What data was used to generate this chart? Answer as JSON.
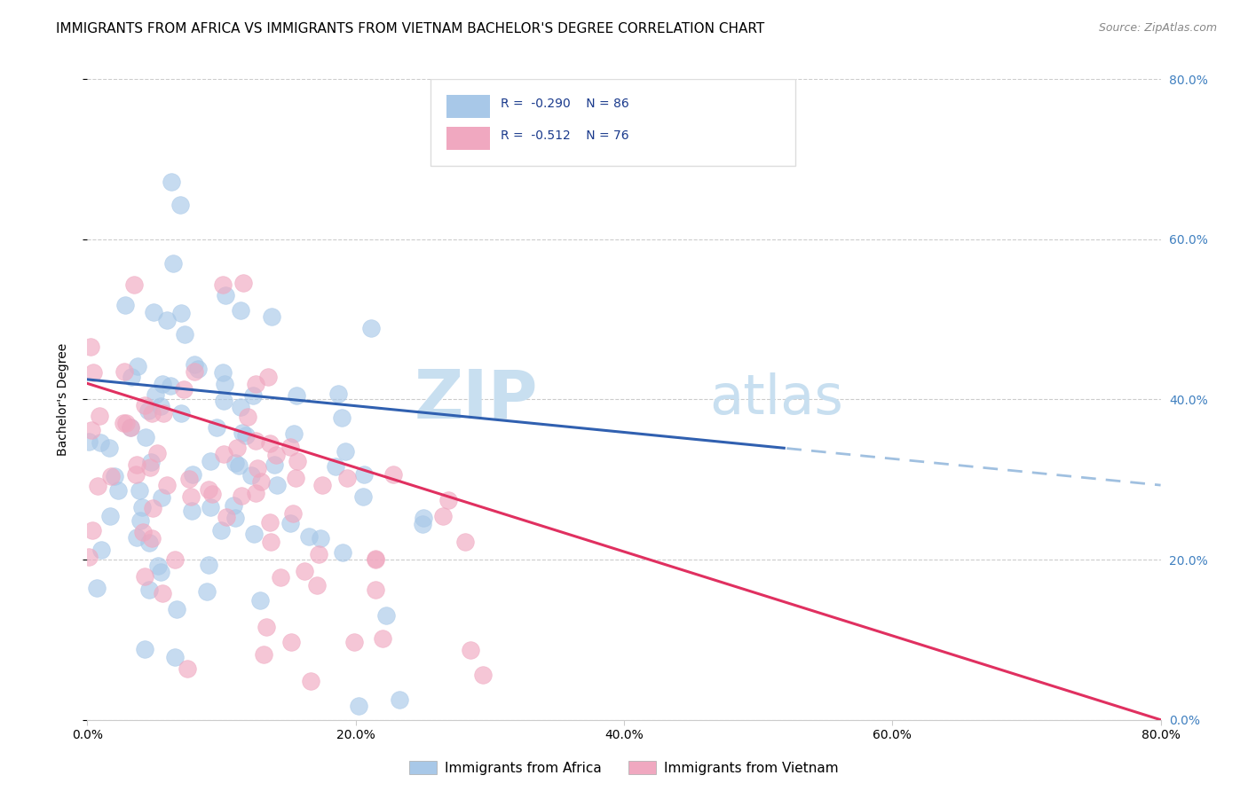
{
  "title": "IMMIGRANTS FROM AFRICA VS IMMIGRANTS FROM VIETNAM BACHELOR'S DEGREE CORRELATION CHART",
  "source": "Source: ZipAtlas.com",
  "ylabel": "Bachelor's Degree",
  "x_tick_labels": [
    "0.0%",
    "20.0%",
    "40.0%",
    "60.0%",
    "80.0%"
  ],
  "x_tick_vals": [
    0,
    20,
    40,
    60,
    80
  ],
  "y_tick_labels": [
    "0.0%",
    "20.0%",
    "40.0%",
    "60.0%",
    "80.0%"
  ],
  "y_tick_vals": [
    0,
    20,
    40,
    60,
    80
  ],
  "xlim": [
    0,
    80
  ],
  "ylim": [
    0,
    80
  ],
  "legend_label1": "Immigrants from Africa",
  "legend_label2": "Immigrants from Vietnam",
  "R1": -0.29,
  "N1": 86,
  "R2": -0.512,
  "N2": 76,
  "color1": "#a8c8e8",
  "color2": "#f0a8c0",
  "trend1_color": "#3060b0",
  "trend2_color": "#e03060",
  "trend1_dash_color": "#a0c0e0",
  "watermark_zip": "ZIP",
  "watermark_atlas": "atlas",
  "title_fontsize": 11,
  "axis_label_fontsize": 10,
  "tick_fontsize": 10,
  "watermark_fontsize": 55,
  "source_fontsize": 9,
  "right_tick_color": "#4080c0",
  "trend1_intercept": 42.5,
  "trend1_slope": -0.165,
  "trend2_intercept": 42.0,
  "trend2_slope": -0.525,
  "trend1_solid_end": 52,
  "trend1_dash_end": 80
}
